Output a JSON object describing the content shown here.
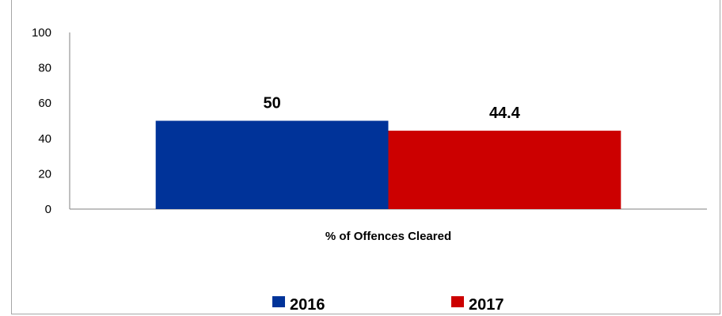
{
  "chart_data": {
    "type": "bar",
    "categories": [
      "% of Offences Cleared"
    ],
    "series": [
      {
        "name": "2016",
        "values": [
          50
        ],
        "color": "#003399"
      },
      {
        "name": "2017",
        "values": [
          44.4
        ],
        "color": "#cc0000"
      }
    ],
    "data_labels": [
      "50",
      "44.4"
    ],
    "ylim": [
      0,
      100
    ],
    "yticks": [
      0,
      20,
      40,
      60,
      80,
      100
    ],
    "grid": false,
    "legend_position": "bottom",
    "title": "",
    "xlabel": "",
    "ylabel": ""
  }
}
